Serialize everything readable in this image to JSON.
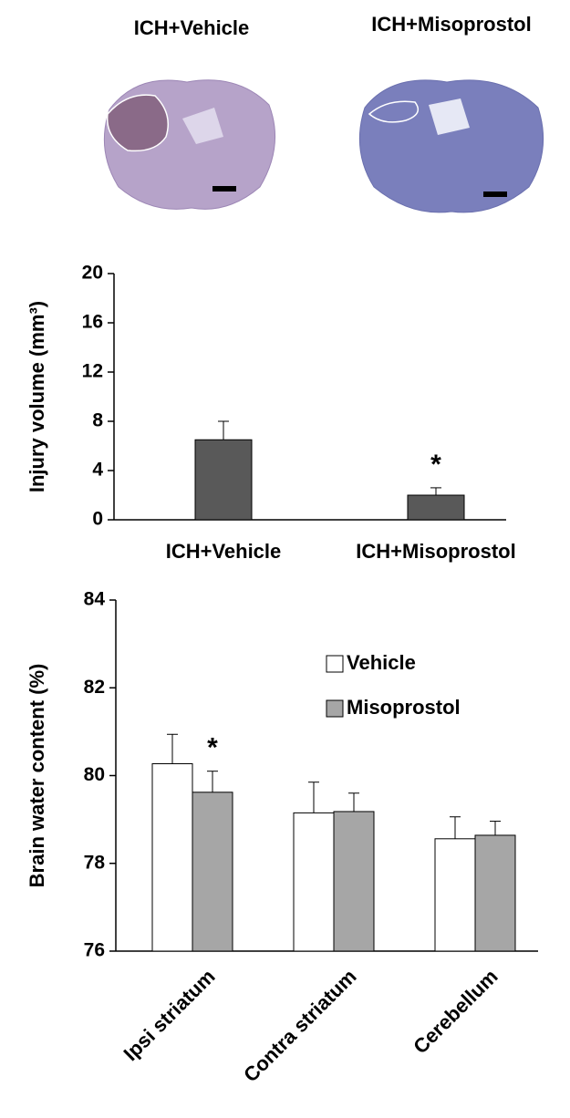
{
  "panels": {
    "labels": [
      "ICH+Vehicle",
      "ICH+Misoprostol"
    ]
  },
  "chart_data": [
    {
      "type": "bar",
      "ylabel": "Injury volume (mm³)",
      "categories": [
        "ICH+Vehicle",
        "ICH+Misoprostol"
      ],
      "values": [
        6.5,
        2.0
      ],
      "errors": [
        1.5,
        0.6
      ],
      "color": "#595959",
      "ylim": [
        0,
        20
      ],
      "yticks": [
        0,
        4,
        8,
        12,
        16,
        20
      ],
      "annotations": [
        "*"
      ]
    },
    {
      "type": "bar",
      "ylabel": "Brain water content (%)",
      "categories": [
        "Ipsi striatum",
        "Contra striatum",
        "Cerebellum"
      ],
      "series": [
        {
          "name": "Vehicle",
          "color": "#ffffff",
          "values": [
            80.27,
            79.15,
            78.56
          ],
          "errors": [
            0.67,
            0.7,
            0.5
          ]
        },
        {
          "name": "Misoprostol",
          "color": "#a6a6a6",
          "values": [
            79.62,
            79.18,
            78.64
          ],
          "errors": [
            0.48,
            0.42,
            0.32
          ]
        }
      ],
      "ylim": [
        76,
        84
      ],
      "yticks": [
        76,
        78,
        80,
        82,
        84
      ],
      "annotations": [
        "*"
      ]
    }
  ]
}
